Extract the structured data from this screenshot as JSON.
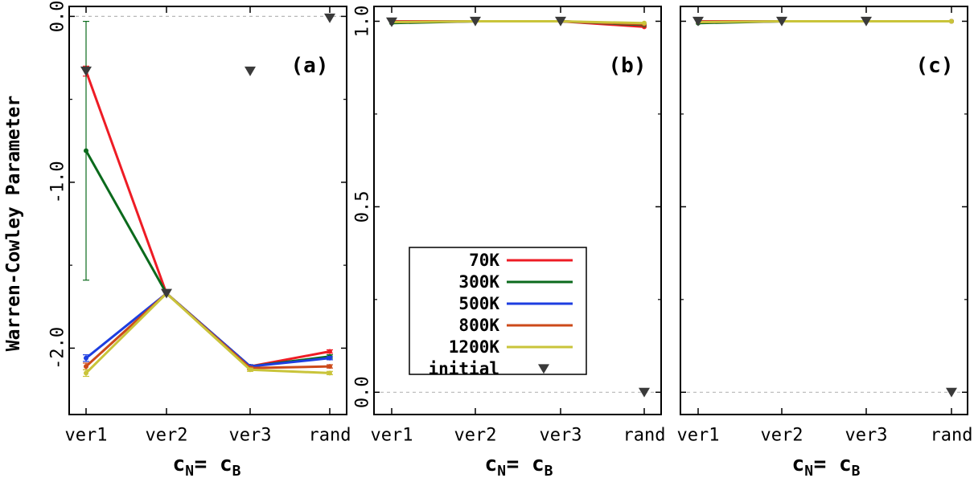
{
  "figure": {
    "ylabel": "Warren-Cowley Parameter",
    "xlabel_main": "c",
    "xlabel_sub1": "N",
    "xlabel_eq": " = ",
    "xlabel_main2": "c",
    "xlabel_sub2": "B"
  },
  "legend": {
    "placement": "inside panel (b), lower-left",
    "entries": [
      {
        "label": "70K",
        "color": "#ee1c25"
      },
      {
        "label": "300K",
        "color": "#0b6a1c"
      },
      {
        "label": "500K",
        "color": "#1d3ee0"
      },
      {
        "label": "800K",
        "color": "#cc4a1a"
      },
      {
        "label": "1200K",
        "color": "#c9c43a"
      },
      {
        "label": "initial",
        "color": "#3a3a3a",
        "marker": "down-triangle"
      }
    ]
  },
  "chart_data": [
    {
      "panel": "(a)",
      "type": "line",
      "categories": [
        "ver1",
        "ver2",
        "ver3",
        "rand"
      ],
      "ylim": [
        -2.4,
        0.06
      ],
      "yticks": [
        0.0,
        -1.0,
        -2.0
      ],
      "ytick_labels": [
        "0.0",
        "-1.0",
        "-2.0"
      ],
      "grid": false,
      "ref_line": 0.0,
      "series": [
        {
          "name": "70K",
          "color": "#ee1c25",
          "values": [
            -0.33,
            -1.67,
            -2.11,
            -2.02
          ],
          "err": [
            0.03,
            0.0,
            0.01,
            0.01
          ]
        },
        {
          "name": "300K",
          "color": "#0b6a1c",
          "values": [
            -0.81,
            -1.67,
            -2.11,
            -2.05
          ],
          "err": [
            0.78,
            0.0,
            0.01,
            0.01
          ]
        },
        {
          "name": "500K",
          "color": "#1d3ee0",
          "values": [
            -2.06,
            -1.67,
            -2.11,
            -2.06
          ],
          "err": [
            0.02,
            0.0,
            0.01,
            0.01
          ]
        },
        {
          "name": "800K",
          "color": "#cc4a1a",
          "values": [
            -2.11,
            -1.67,
            -2.12,
            -2.11
          ],
          "err": [
            0.02,
            0.0,
            0.01,
            0.01
          ]
        },
        {
          "name": "1200K",
          "color": "#c9c43a",
          "values": [
            -2.15,
            -1.67,
            -2.13,
            -2.15
          ],
          "err": [
            0.02,
            0.0,
            0.01,
            0.01
          ]
        }
      ],
      "initial": [
        -0.33,
        -1.67,
        -0.33,
        -0.01
      ]
    },
    {
      "panel": "(b)",
      "type": "line",
      "categories": [
        "ver1",
        "ver2",
        "ver3",
        "rand"
      ],
      "ylim": [
        -0.06,
        1.04
      ],
      "yticks": [
        0.0,
        0.5,
        1.0
      ],
      "ytick_labels": [
        "0.0",
        "0.5",
        "1.0"
      ],
      "grid": false,
      "ref_line": 0.0,
      "series": [
        {
          "name": "70K",
          "color": "#ee1c25",
          "values": [
            1.0,
            1.0,
            1.0,
            0.985
          ],
          "err": [
            0,
            0,
            0,
            0
          ]
        },
        {
          "name": "300K",
          "color": "#0b6a1c",
          "values": [
            0.995,
            1.0,
            1.0,
            0.99
          ],
          "err": [
            0,
            0,
            0,
            0
          ]
        },
        {
          "name": "500K",
          "color": "#1d3ee0",
          "values": [
            0.998,
            1.0,
            1.0,
            0.992
          ],
          "err": [
            0,
            0,
            0,
            0
          ]
        },
        {
          "name": "800K",
          "color": "#cc4a1a",
          "values": [
            0.998,
            1.0,
            1.0,
            0.992
          ],
          "err": [
            0,
            0,
            0,
            0
          ]
        },
        {
          "name": "1200K",
          "color": "#c9c43a",
          "values": [
            0.998,
            1.0,
            1.0,
            0.995
          ],
          "err": [
            0,
            0,
            0,
            0
          ]
        }
      ],
      "initial": [
        0.998,
        1.0,
        1.0,
        0.0
      ]
    },
    {
      "panel": "(c)",
      "type": "line",
      "categories": [
        "ver1",
        "ver2",
        "ver3",
        "rand"
      ],
      "ylim": [
        -0.06,
        1.04
      ],
      "yticks": [
        0.0,
        0.5,
        1.0
      ],
      "ytick_labels": [],
      "grid": false,
      "ref_line": 0.0,
      "series": [
        {
          "name": "70K",
          "color": "#ee1c25",
          "values": [
            1.0,
            1.0,
            1.0,
            1.0
          ],
          "err": [
            0,
            0,
            0,
            0
          ]
        },
        {
          "name": "300K",
          "color": "#0b6a1c",
          "values": [
            0.995,
            1.0,
            1.0,
            1.0
          ],
          "err": [
            0,
            0,
            0,
            0
          ]
        },
        {
          "name": "500K",
          "color": "#1d3ee0",
          "values": [
            0.998,
            1.0,
            1.0,
            1.0
          ],
          "err": [
            0,
            0,
            0,
            0
          ]
        },
        {
          "name": "800K",
          "color": "#cc4a1a",
          "values": [
            0.998,
            1.0,
            1.0,
            1.0
          ],
          "err": [
            0,
            0,
            0,
            0
          ]
        },
        {
          "name": "1200K",
          "color": "#c9c43a",
          "values": [
            0.998,
            1.0,
            1.0,
            1.0
          ],
          "err": [
            0,
            0,
            0,
            0
          ]
        }
      ],
      "initial": [
        1.0,
        1.0,
        1.0,
        0.0
      ]
    }
  ]
}
